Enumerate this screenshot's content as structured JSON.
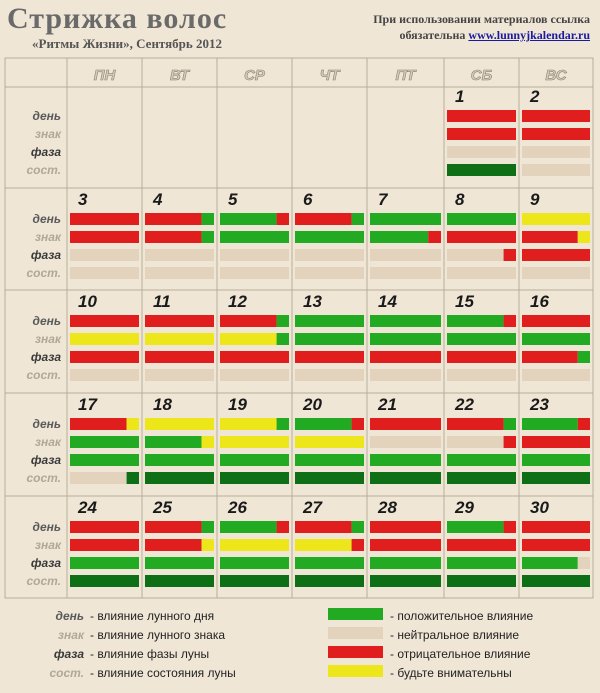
{
  "header": {
    "title": "Стрижка волос",
    "subtitle": "«Ритмы Жизни», Сентябрь 2012",
    "note_line1": "При использовании материалов ссылка",
    "note_prefix": "обязательна ",
    "link": "www.lunnyjkalendar.ru"
  },
  "weekdays": [
    "ПН",
    "ВТ",
    "СР",
    "ЧТ",
    "ПТ",
    "СБ",
    "ВС"
  ],
  "row_labels": [
    "день",
    "знак",
    "фаза",
    "сост."
  ],
  "colors": {
    "G": "#22aa22",
    "D": "#0f6f16",
    "R": "#e01e1e",
    "Y": "#ece61a",
    "N": "#e3d3bd"
  },
  "weeks": [
    {
      "days": [
        null,
        null,
        null,
        null,
        null,
        {
          "n": "1",
          "r": [
            "R",
            "R",
            "N",
            "D"
          ]
        },
        {
          "n": "2",
          "r": [
            "R",
            "R",
            "N",
            "N"
          ]
        }
      ]
    },
    {
      "days": [
        {
          "n": "3",
          "r": [
            "R",
            "R",
            "N",
            "N"
          ]
        },
        {
          "n": "4",
          "r": [
            "R G",
            "R G",
            "N",
            "N"
          ]
        },
        {
          "n": "5",
          "r": [
            "G R",
            "G",
            "N",
            "N"
          ]
        },
        {
          "n": "6",
          "r": [
            "R G",
            "G",
            "N",
            "N"
          ]
        },
        {
          "n": "7",
          "r": [
            "G",
            "G R",
            "N",
            "N"
          ]
        },
        {
          "n": "8",
          "r": [
            "G",
            "R",
            "N R",
            "N"
          ]
        },
        {
          "n": "9",
          "r": [
            "Y",
            "R Y",
            "R",
            "N"
          ]
        }
      ]
    },
    {
      "days": [
        {
          "n": "10",
          "r": [
            "R",
            "Y",
            "R",
            "N"
          ]
        },
        {
          "n": "11",
          "r": [
            "R",
            "Y",
            "R",
            "N"
          ]
        },
        {
          "n": "12",
          "r": [
            "R G",
            "Y G",
            "R",
            "N"
          ]
        },
        {
          "n": "13",
          "r": [
            "G",
            "G",
            "R",
            "N"
          ]
        },
        {
          "n": "14",
          "r": [
            "G",
            "G",
            "R",
            "N"
          ]
        },
        {
          "n": "15",
          "r": [
            "G R",
            "G",
            "R",
            "N"
          ]
        },
        {
          "n": "16",
          "r": [
            "R",
            "G",
            "R G",
            "N"
          ]
        }
      ]
    },
    {
      "days": [
        {
          "n": "17",
          "r": [
            "R Y",
            "G",
            "G",
            "N D"
          ]
        },
        {
          "n": "18",
          "r": [
            "Y",
            "G Y",
            "G",
            "D"
          ]
        },
        {
          "n": "19",
          "r": [
            "Y G",
            "Y",
            "G",
            "D"
          ]
        },
        {
          "n": "20",
          "r": [
            "G R",
            "Y",
            "G",
            "D"
          ]
        },
        {
          "n": "21",
          "r": [
            "R",
            "N",
            "G",
            "D"
          ]
        },
        {
          "n": "22",
          "r": [
            "R G",
            "N R",
            "G",
            "D"
          ]
        },
        {
          "n": "23",
          "r": [
            "G R",
            "R",
            "G",
            "D"
          ]
        }
      ]
    },
    {
      "days": [
        {
          "n": "24",
          "r": [
            "R",
            "R",
            "G",
            "D"
          ]
        },
        {
          "n": "25",
          "r": [
            "R G",
            "R Y",
            "G",
            "D"
          ]
        },
        {
          "n": "26",
          "r": [
            "G R",
            "Y",
            "G",
            "D"
          ]
        },
        {
          "n": "27",
          "r": [
            "R G",
            "Y R",
            "G",
            "D"
          ]
        },
        {
          "n": "28",
          "r": [
            "R",
            "R",
            "G",
            "D"
          ]
        },
        {
          "n": "29",
          "r": [
            "G R",
            "R",
            "G",
            "D"
          ]
        },
        {
          "n": "30",
          "r": [
            "R",
            "R",
            "G N",
            "D"
          ]
        }
      ]
    }
  ],
  "legend_left": [
    {
      "label": "день",
      "text": "- влияние лунного дня"
    },
    {
      "label": "знак",
      "text": "- влияние лунного знака"
    },
    {
      "label": "фаза",
      "text": "- влияние фазы луны"
    },
    {
      "label": "сост.",
      "text": "- влияние состояния луны"
    }
  ],
  "legend_right": [
    {
      "color": "G",
      "text": "- положительное влияние"
    },
    {
      "color": "N",
      "text": "- нейтральное влияние"
    },
    {
      "color": "R",
      "text": "- отрицательное влияние"
    },
    {
      "color": "Y",
      "text": "- будьте внимательны"
    }
  ]
}
